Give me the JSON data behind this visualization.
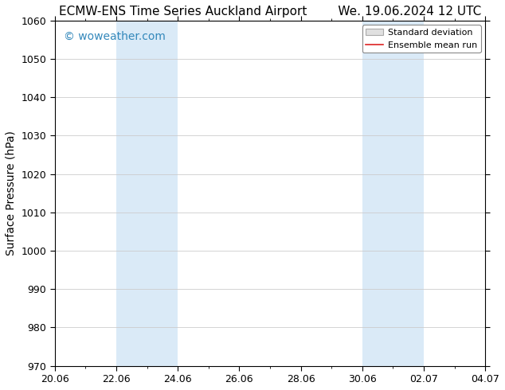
{
  "title_left": "ECMW-ENS Time Series Auckland Airport",
  "title_right": "We. 19.06.2024 12 UTC",
  "ylabel": "Surface Pressure (hPa)",
  "ylim": [
    970,
    1060
  ],
  "yticks": [
    970,
    980,
    990,
    1000,
    1010,
    1020,
    1030,
    1040,
    1050,
    1060
  ],
  "xtick_labels": [
    "20.06",
    "22.06",
    "24.06",
    "26.06",
    "28.06",
    "30.06",
    "02.07",
    "04.07"
  ],
  "xtick_positions": [
    0,
    2,
    4,
    6,
    8,
    10,
    12,
    14
  ],
  "shaded_bands": [
    {
      "x_start": 2,
      "x_end": 4
    },
    {
      "x_start": 10,
      "x_end": 12
    }
  ],
  "shaded_color": "#daeaf7",
  "grid_color": "#cccccc",
  "background_color": "#ffffff",
  "watermark_text": "© woweather.com",
  "watermark_color": "#3388bb",
  "legend_std_label": "Standard deviation",
  "legend_mean_label": "Ensemble mean run",
  "legend_std_facecolor": "#e0e0e0",
  "legend_std_edgecolor": "#aaaaaa",
  "legend_mean_color": "#dd2222",
  "title_fontsize": 11,
  "ylabel_fontsize": 10,
  "tick_fontsize": 9,
  "watermark_fontsize": 10,
  "legend_fontsize": 8,
  "spine_color": "#000000",
  "tick_color": "#000000"
}
